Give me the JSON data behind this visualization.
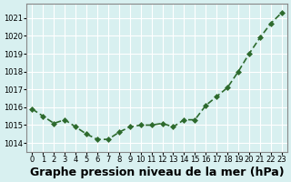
{
  "x": [
    0,
    1,
    2,
    3,
    4,
    5,
    6,
    7,
    8,
    9,
    10,
    11,
    12,
    13,
    14,
    15,
    16,
    17,
    18,
    19,
    20,
    21,
    22,
    23
  ],
  "y": [
    1015.9,
    1015.5,
    1015.1,
    1015.3,
    1014.9,
    1014.5,
    1014.2,
    1014.2,
    1014.6,
    1014.9,
    1015.0,
    1015.0,
    1015.1,
    1014.9,
    1015.3,
    1015.3,
    1016.1,
    1016.6,
    1017.1,
    1018.0,
    1019.0,
    1019.9,
    1020.7,
    1021.3
  ],
  "line_color": "#2d6a2d",
  "marker": "D",
  "marker_size": 3,
  "marker_color": "#2d6a2d",
  "bg_color": "#d8f0f0",
  "grid_color": "#ffffff",
  "xlabel": "Graphe pression niveau de la mer (hPa)",
  "xlabel_fontsize": 9,
  "ylabel_ticks": [
    1014,
    1015,
    1016,
    1017,
    1018,
    1019,
    1020,
    1021
  ],
  "ylim": [
    1013.5,
    1021.8
  ],
  "xlim": [
    -0.5,
    23.5
  ],
  "xticks": [
    0,
    1,
    2,
    3,
    4,
    5,
    6,
    7,
    8,
    9,
    10,
    11,
    12,
    13,
    14,
    15,
    16,
    17,
    18,
    19,
    20,
    21,
    22,
    23
  ],
  "tick_label_fontsize": 6,
  "line_width": 1.2,
  "title_color": "#000000"
}
